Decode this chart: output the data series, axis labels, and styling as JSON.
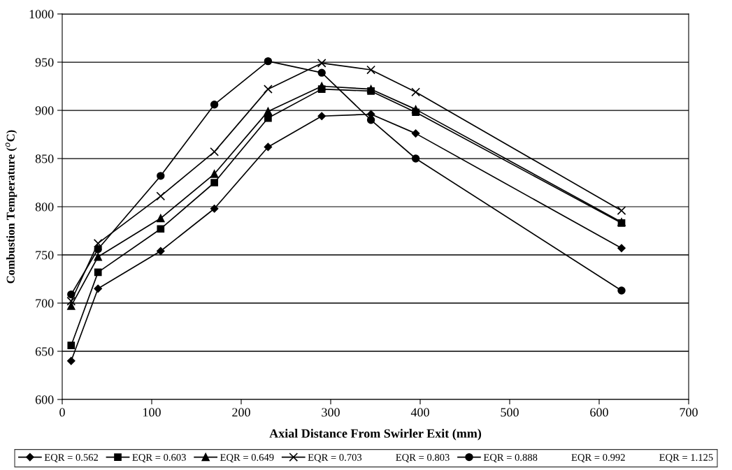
{
  "chart_data": {
    "type": "line",
    "xlabel": "Axial Distance From Swirler Exit (mm)",
    "ylabel": "Combustion Temperature ($^{o}$C)",
    "x": [
      10,
      40,
      110,
      170,
      230,
      290,
      345,
      395,
      625
    ],
    "xlim": [
      0,
      700
    ],
    "xticks": [
      0,
      100,
      200,
      300,
      400,
      500,
      600,
      700
    ],
    "ylim": [
      600,
      1000
    ],
    "yticks": [
      600,
      650,
      700,
      750,
      800,
      850,
      900,
      950,
      1000
    ],
    "grid": "y",
    "legend": "bottom",
    "line_style": "solid",
    "series": [
      {
        "name": "EQR = 0.562",
        "color": "#000000",
        "marker": "diamond",
        "values": [
          640,
          715,
          754,
          798,
          862,
          894,
          896,
          876,
          757
        ]
      },
      {
        "name": "EQR = 0.603",
        "color": "#000000",
        "marker": "square",
        "values": [
          656,
          732,
          777,
          825,
          892,
          922,
          920,
          898,
          783
        ]
      },
      {
        "name": "EQR = 0.649",
        "color": "#000000",
        "marker": "triangle",
        "values": [
          697,
          748,
          788,
          834,
          899,
          925,
          922,
          901,
          784
        ]
      },
      {
        "name": "EQR = 0.703",
        "color": "#000000",
        "marker": "cross",
        "values": [
          702,
          762,
          811,
          857,
          922,
          949,
          942,
          919,
          796
        ]
      },
      {
        "name": "EQR = 0.803",
        "marker": "none",
        "values": [
          null,
          null,
          null,
          null,
          null,
          null,
          null,
          null,
          null
        ]
      },
      {
        "name": "EQR = 0.888",
        "color": "#000000",
        "marker": "circle",
        "values": [
          709,
          756,
          832,
          906,
          951,
          939,
          890,
          850,
          713
        ]
      },
      {
        "name": "EQR = 0.992",
        "marker": "none",
        "values": [
          null,
          null,
          null,
          null,
          null,
          null,
          null,
          null,
          null
        ]
      },
      {
        "name": "EQR = 1.125",
        "marker": "none",
        "values": [
          null,
          null,
          null,
          null,
          null,
          null,
          null,
          null,
          null
        ]
      }
    ]
  }
}
